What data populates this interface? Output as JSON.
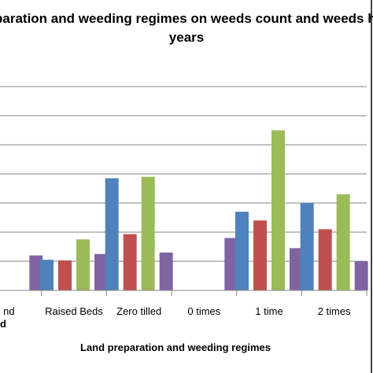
{
  "chart_data": {
    "type": "bar",
    "title_line1": "paration and weeding regimes on weeds count and weeds hei",
    "title_line2": "years",
    "xlabel": "Land preparation and weeding regimes",
    "categories": [
      "nd",
      "Raised Beds",
      "Zero tilled",
      "0 times",
      "1 time",
      "2 times"
    ],
    "left_cut_label": "d",
    "series": [
      {
        "values": [
          null,
          1.05,
          3.85,
          0,
          2.7,
          3.0
        ],
        "color": "#4f81bd"
      },
      {
        "values": [
          null,
          1.03,
          1.93,
          0,
          2.4,
          2.1
        ],
        "color": "#c0504d"
      },
      {
        "values": [
          null,
          1.75,
          3.9,
          0,
          5.5,
          3.3
        ],
        "color": "#9bbb59"
      },
      {
        "values": [
          1.2,
          1.25,
          1.3,
          1.8,
          1.45,
          1.0
        ],
        "color": "#8064a2"
      }
    ],
    "ylim": [
      0,
      7
    ],
    "grid": true
  }
}
